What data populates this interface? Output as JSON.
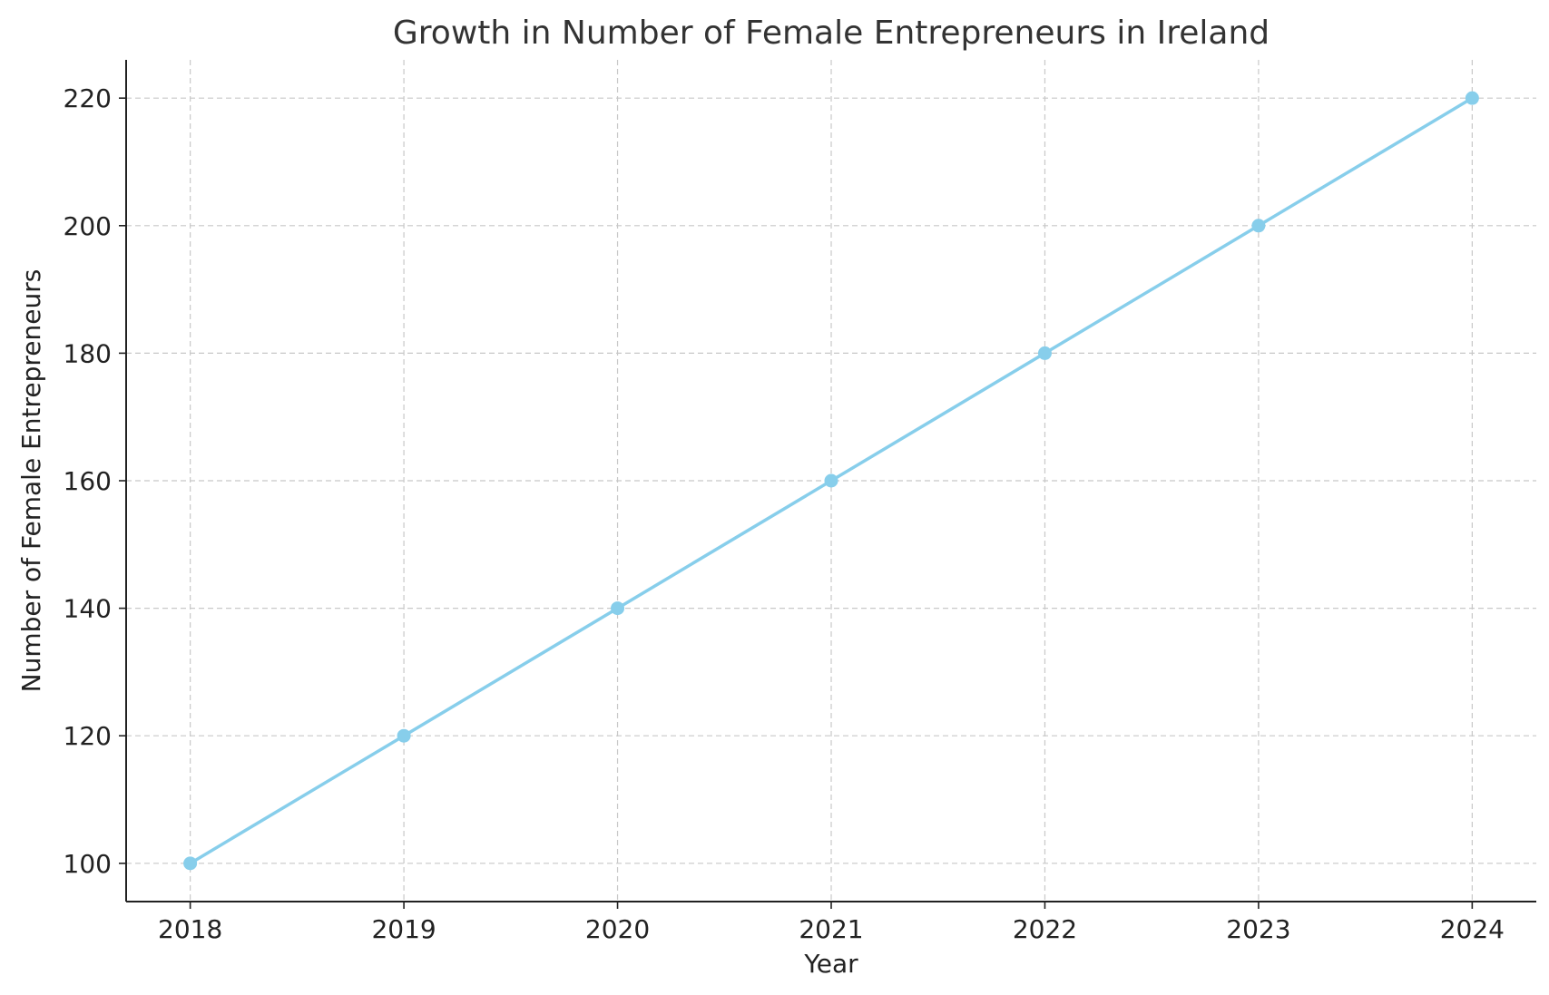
{
  "chart_data": {
    "type": "line",
    "title": "Growth in Number of Female Entrepreneurs in Ireland",
    "xlabel": "Year",
    "ylabel": "Number of Female Entrepreneurs",
    "x": [
      2018,
      2019,
      2020,
      2021,
      2022,
      2023,
      2024
    ],
    "x_tick_labels": [
      "2018",
      "2019",
      "2020",
      "2021",
      "2022",
      "2023",
      "2024"
    ],
    "y_ticks": [
      100,
      120,
      140,
      160,
      180,
      200,
      220
    ],
    "y_tick_labels": [
      "100",
      "120",
      "140",
      "160",
      "180",
      "200",
      "220"
    ],
    "series": [
      {
        "values": [
          100,
          120,
          140,
          160,
          180,
          200,
          220
        ],
        "color": "#87ceeb",
        "marker": "circle"
      }
    ],
    "xlim": [
      2017.7,
      2024.3
    ],
    "ylim": [
      94,
      226
    ],
    "grid": true,
    "colors": {
      "line": "#87ceeb",
      "axis": "#222222",
      "grid": "#c8c8c8",
      "title": "#333333"
    }
  }
}
